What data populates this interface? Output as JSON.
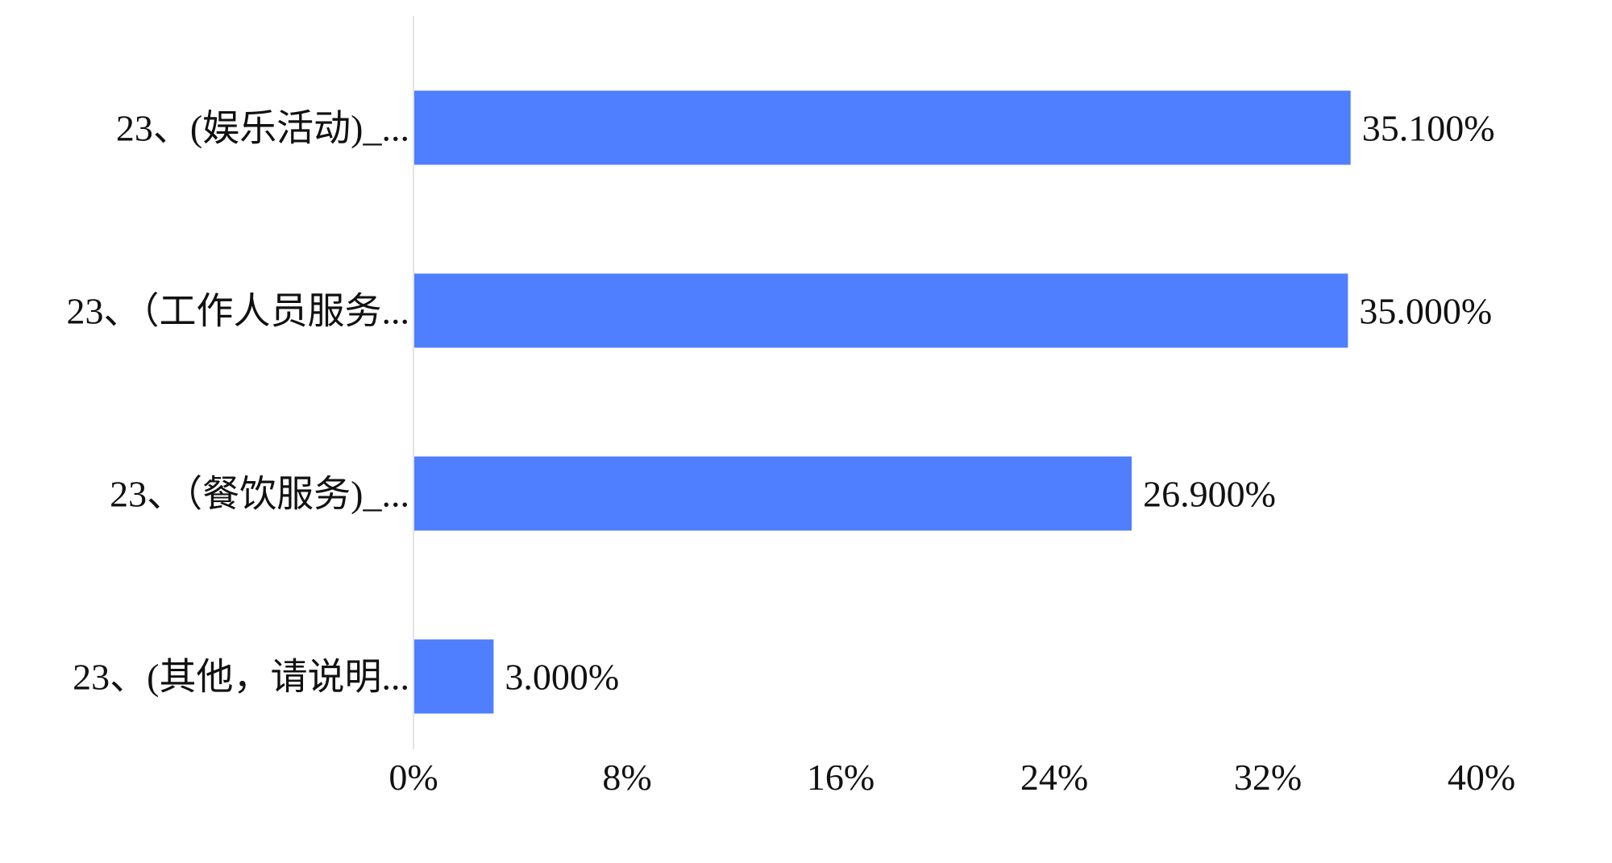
{
  "chart_data": {
    "type": "bar",
    "orientation": "horizontal",
    "categories": [
      "23、(娱乐活动)_...",
      "23、（工作人员服务...",
      "23、（餐饮服务)_...",
      "23、(其他，请说明..."
    ],
    "values": [
      35.1,
      35.0,
      26.9,
      3.0
    ],
    "value_labels": [
      "35.100%",
      "35.000%",
      "26.900%",
      "3.000%"
    ],
    "xlim": [
      0,
      40
    ],
    "xticks": [
      0,
      8,
      16,
      24,
      32,
      40
    ],
    "xtick_labels": [
      "0%",
      "8%",
      "16%",
      "24%",
      "32%",
      "40%"
    ],
    "title": "",
    "xlabel": "",
    "ylabel": "",
    "grid": false,
    "legend": "none",
    "bar_color": "#4f7ffe",
    "axis_color": "#e3e3e3"
  }
}
